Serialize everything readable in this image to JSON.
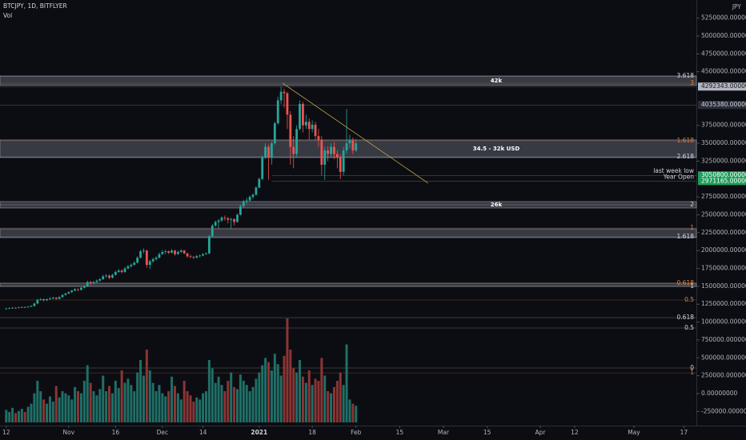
{
  "chart_data": {
    "type": "candlestick",
    "title": "BTCJPY, 1D, BITFLYER",
    "subtitle": "Vol",
    "y_axis_unit": "JPY",
    "up_color": "#26a69a",
    "down_color": "#ef5350",
    "volume_up_color": "#1f6f67",
    "volume_down_color": "#8c3434",
    "xlim": [
      -2,
      221
    ],
    "xticks": [
      {
        "value": 0,
        "label": "12"
      },
      {
        "value": 20,
        "label": "Nov"
      },
      {
        "value": 35,
        "label": "16"
      },
      {
        "value": 50,
        "label": "Dec"
      },
      {
        "value": 63,
        "label": "14"
      },
      {
        "value": 81,
        "label": "2021"
      },
      {
        "value": 98,
        "label": "18"
      },
      {
        "value": 112,
        "label": "Feb"
      },
      {
        "value": 126,
        "label": "15"
      },
      {
        "value": 140,
        "label": "Mar"
      },
      {
        "value": 154,
        "label": "15"
      },
      {
        "value": 171,
        "label": "Apr"
      },
      {
        "value": 182,
        "label": "12"
      },
      {
        "value": 201,
        "label": "May"
      },
      {
        "value": 217,
        "label": "17"
      }
    ],
    "ylim": [
      -425000,
      5503000
    ],
    "yticks": [
      {
        "value": 5250000,
        "label": "5250000.00000000"
      },
      {
        "value": 5000000,
        "label": "5000000.00000000"
      },
      {
        "value": 4750000,
        "label": "4750000.00000000"
      },
      {
        "value": 4500000,
        "label": "4500000.00000000"
      },
      {
        "value": 3750000,
        "label": "3750000.00000000"
      },
      {
        "value": 3500000,
        "label": "3500000.00000000"
      },
      {
        "value": 3250000,
        "label": "3250000.00000000"
      },
      {
        "value": 2750000,
        "label": "2750000.00000000"
      },
      {
        "value": 2500000,
        "label": "2500000.00000000"
      },
      {
        "value": 2250000,
        "label": "2250000.00000000"
      },
      {
        "value": 2000000,
        "label": "2000000.00000000"
      },
      {
        "value": 1750000,
        "label": "1750000.00000000"
      },
      {
        "value": 1500000,
        "label": "1500000.00000000"
      },
      {
        "value": 1250000,
        "label": "1250000.00000000"
      },
      {
        "value": 1000000,
        "label": "1000000.00000000"
      },
      {
        "value": 750000,
        "label": "750000.00000000"
      },
      {
        "value": 500000,
        "label": "500000.00000000"
      },
      {
        "value": 250000,
        "label": "250000.00000000"
      },
      {
        "value": 0,
        "label": "0.00000000"
      },
      {
        "value": -250000,
        "label": "-250000.00000000"
      }
    ],
    "ohlc": [
      [
        1185000,
        1200000,
        1175000,
        1190000
      ],
      [
        1190000,
        1205000,
        1182000,
        1195000
      ],
      [
        1195000,
        1210000,
        1188000,
        1200000
      ],
      [
        1200000,
        1208000,
        1188000,
        1198000
      ],
      [
        1198000,
        1215000,
        1192000,
        1205000
      ],
      [
        1205000,
        1220000,
        1198000,
        1210000
      ],
      [
        1210000,
        1218000,
        1198000,
        1208000
      ],
      [
        1208000,
        1225000,
        1200000,
        1215000
      ],
      [
        1215000,
        1235000,
        1208000,
        1225000
      ],
      [
        1225000,
        1270000,
        1218000,
        1260000
      ],
      [
        1260000,
        1325000,
        1250000,
        1310000
      ],
      [
        1310000,
        1335000,
        1300000,
        1320000
      ],
      [
        1320000,
        1330000,
        1290000,
        1305000
      ],
      [
        1305000,
        1330000,
        1295000,
        1320000
      ],
      [
        1320000,
        1345000,
        1310000,
        1330000
      ],
      [
        1330000,
        1355000,
        1320000,
        1340000
      ],
      [
        1340000,
        1350000,
        1310000,
        1325000
      ],
      [
        1325000,
        1360000,
        1315000,
        1350000
      ],
      [
        1350000,
        1390000,
        1340000,
        1380000
      ],
      [
        1380000,
        1410000,
        1370000,
        1400000
      ],
      [
        1400000,
        1430000,
        1390000,
        1420000
      ],
      [
        1420000,
        1450000,
        1405000,
        1440000
      ],
      [
        1440000,
        1475000,
        1430000,
        1460000
      ],
      [
        1460000,
        1470000,
        1430000,
        1450000
      ],
      [
        1450000,
        1490000,
        1440000,
        1480000
      ],
      [
        1480000,
        1515000,
        1470000,
        1500000
      ],
      [
        1500000,
        1580000,
        1490000,
        1560000
      ],
      [
        1560000,
        1575000,
        1520000,
        1540000
      ],
      [
        1540000,
        1575000,
        1530000,
        1560000
      ],
      [
        1560000,
        1595000,
        1545000,
        1580000
      ],
      [
        1580000,
        1615000,
        1565000,
        1600000
      ],
      [
        1600000,
        1660000,
        1590000,
        1640000
      ],
      [
        1640000,
        1670000,
        1620000,
        1650000
      ],
      [
        1650000,
        1665000,
        1600000,
        1620000
      ],
      [
        1620000,
        1675000,
        1610000,
        1660000
      ],
      [
        1660000,
        1720000,
        1650000,
        1700000
      ],
      [
        1700000,
        1740000,
        1690000,
        1720000
      ],
      [
        1720000,
        1735000,
        1680000,
        1700000
      ],
      [
        1700000,
        1770000,
        1690000,
        1750000
      ],
      [
        1750000,
        1800000,
        1740000,
        1780000
      ],
      [
        1780000,
        1820000,
        1760000,
        1800000
      ],
      [
        1800000,
        1850000,
        1790000,
        1830000
      ],
      [
        1830000,
        1920000,
        1820000,
        1900000
      ],
      [
        1900000,
        2010000,
        1890000,
        1990000
      ],
      [
        1990000,
        2030000,
        1960000,
        2000000
      ],
      [
        2000000,
        2010000,
        1760000,
        1800000
      ],
      [
        1800000,
        1870000,
        1740000,
        1850000
      ],
      [
        1850000,
        1900000,
        1830000,
        1880000
      ],
      [
        1880000,
        1920000,
        1860000,
        1900000
      ],
      [
        1900000,
        1970000,
        1890000,
        1950000
      ],
      [
        1950000,
        2010000,
        1940000,
        1980000
      ],
      [
        1980000,
        2010000,
        1950000,
        1990000
      ],
      [
        1990000,
        2000000,
        1950000,
        1970000
      ],
      [
        1970000,
        2020000,
        1960000,
        2000000
      ],
      [
        2000000,
        2010000,
        1930000,
        1950000
      ],
      [
        1950000,
        2000000,
        1940000,
        1980000
      ],
      [
        1980000,
        2020000,
        1970000,
        2000000
      ],
      [
        2000000,
        2010000,
        1950000,
        1960000
      ],
      [
        1960000,
        1970000,
        1900000,
        1920000
      ],
      [
        1920000,
        1940000,
        1895000,
        1910000
      ],
      [
        1910000,
        1925000,
        1880000,
        1900000
      ],
      [
        1900000,
        1940000,
        1890000,
        1920000
      ],
      [
        1920000,
        1945000,
        1905000,
        1930000
      ],
      [
        1930000,
        1965000,
        1920000,
        1950000
      ],
      [
        1950000,
        1975000,
        1940000,
        1960000
      ],
      [
        1960000,
        2220000,
        1950000,
        2200000
      ],
      [
        2200000,
        2370000,
        2190000,
        2350000
      ],
      [
        2350000,
        2420000,
        2330000,
        2400000
      ],
      [
        2400000,
        2440000,
        2310000,
        2420000
      ],
      [
        2420000,
        2480000,
        2400000,
        2460000
      ],
      [
        2460000,
        2490000,
        2420000,
        2450000
      ],
      [
        2450000,
        2470000,
        2380000,
        2430000
      ],
      [
        2430000,
        2460000,
        2300000,
        2440000
      ],
      [
        2440000,
        2450000,
        2350000,
        2400000
      ],
      [
        2400000,
        2520000,
        2390000,
        2500000
      ],
      [
        2500000,
        2640000,
        2490000,
        2620000
      ],
      [
        2620000,
        2710000,
        2600000,
        2690000
      ],
      [
        2690000,
        2740000,
        2650000,
        2700000
      ],
      [
        2700000,
        2770000,
        2680000,
        2750000
      ],
      [
        2750000,
        2800000,
        2720000,
        2780000
      ],
      [
        2780000,
        2900000,
        2770000,
        2880000
      ],
      [
        2880000,
        3020000,
        2870000,
        3000000
      ],
      [
        3000000,
        3330000,
        2990000,
        3300000
      ],
      [
        3300000,
        3500000,
        3280000,
        3450000
      ],
      [
        3450000,
        3480000,
        2990000,
        3300000
      ],
      [
        3300000,
        3520000,
        3200000,
        3500000
      ],
      [
        3500000,
        3800000,
        3480000,
        3780000
      ],
      [
        3780000,
        4150000,
        3760000,
        4100000
      ],
      [
        4100000,
        4290000,
        4050000,
        4220000
      ],
      [
        4220000,
        4260000,
        4000000,
        4200000
      ],
      [
        4200000,
        4220000,
        3700000,
        3900000
      ],
      [
        3900000,
        3950000,
        3200000,
        3450000
      ],
      [
        3450000,
        3600000,
        3150000,
        3350000
      ],
      [
        3350000,
        3750000,
        3300000,
        3700000
      ],
      [
        3700000,
        4100000,
        3680000,
        4050000
      ],
      [
        4050000,
        4080000,
        3650000,
        3750000
      ],
      [
        3750000,
        3900000,
        3700000,
        3800000
      ],
      [
        3800000,
        3850000,
        3550000,
        3700000
      ],
      [
        3700000,
        3820000,
        3650000,
        3760000
      ],
      [
        3760000,
        3800000,
        3550000,
        3600000
      ],
      [
        3600000,
        3700000,
        3450000,
        3550000
      ],
      [
        3550000,
        3600000,
        3050000,
        3200000
      ],
      [
        3200000,
        3450000,
        2990000,
        3400000
      ],
      [
        3400000,
        3460000,
        3250000,
        3350000
      ],
      [
        3350000,
        3500000,
        3300000,
        3450000
      ],
      [
        3450000,
        3520000,
        3280000,
        3350000
      ],
      [
        3350000,
        3400000,
        3150000,
        3300000
      ],
      [
        3300000,
        3350000,
        3000000,
        3100000
      ],
      [
        3100000,
        3450000,
        3050000,
        3400000
      ],
      [
        3400000,
        3980000,
        3350000,
        3500000
      ],
      [
        3500000,
        3620000,
        3430000,
        3550000
      ],
      [
        3550000,
        3580000,
        3350000,
        3400000
      ],
      [
        3400000,
        3560000,
        3380000,
        3500000
      ]
    ],
    "volume_ylim": [
      0,
      100
    ],
    "volume": [
      12,
      10,
      14,
      9,
      11,
      13,
      10,
      15,
      18,
      28,
      40,
      30,
      22,
      18,
      25,
      20,
      35,
      24,
      30,
      28,
      26,
      22,
      34,
      30,
      28,
      40,
      55,
      38,
      30,
      26,
      32,
      45,
      30,
      35,
      28,
      40,
      33,
      50,
      38,
      42,
      36,
      30,
      48,
      60,
      45,
      70,
      50,
      38,
      30,
      36,
      28,
      25,
      30,
      44,
      35,
      28,
      22,
      40,
      30,
      26,
      20,
      24,
      22,
      28,
      30,
      60,
      52,
      38,
      44,
      36,
      30,
      40,
      48,
      34,
      32,
      46,
      40,
      36,
      30,
      34,
      42,
      48,
      55,
      62,
      58,
      50,
      66,
      56,
      45,
      64,
      100,
      70,
      52,
      48,
      60,
      44,
      38,
      50,
      36,
      42,
      40,
      62,
      45,
      30,
      28,
      34,
      40,
      48,
      36,
      75,
      22,
      18,
      16
    ],
    "zones": [
      {
        "from": 4310000,
        "to": 4440000,
        "label": "42k"
      },
      {
        "from": 3300000,
        "to": 3546000,
        "label": "34.5 - 32k USD"
      },
      {
        "from": 2595000,
        "to": 2685000,
        "label": "26k"
      },
      {
        "from": 2181000,
        "to": 2304000
      },
      {
        "from": 1499000,
        "to": 1544000
      }
    ],
    "fib_levels": [
      {
        "label": "3.618",
        "value": 4440000,
        "color": "#d1d4dc"
      },
      {
        "label": "3",
        "value": 4340000,
        "color": "#e0803a"
      },
      {
        "label": "1.618",
        "value": 3535000,
        "color": "#e0803a"
      },
      {
        "label": "2.618",
        "value": 3310000,
        "color": "#d1d4dc"
      },
      {
        "label": "2",
        "value": 2640000,
        "color": "#d1d4dc"
      },
      {
        "label": "1",
        "value": 2315000,
        "color": "#e0803a"
      },
      {
        "label": "1.618",
        "value": 2192000,
        "color": "#d1d4dc"
      },
      {
        "label": "0.618",
        "value": 1544000,
        "color": "#e0803a"
      },
      {
        "label": "1",
        "value": 1499000,
        "color": "#d1d4dc"
      },
      {
        "label": "0.5",
        "value": 1309000,
        "color": "#e0803a"
      },
      {
        "label": "0.618",
        "value": 1062000,
        "color": "#d1d4dc"
      },
      {
        "label": "0.5",
        "value": 917000,
        "color": "#d1d4dc"
      },
      {
        "label": "0",
        "value": 358000,
        "color": "#d1d4dc"
      },
      {
        "label": "1",
        "value": 290000,
        "color": "#e0803a"
      }
    ],
    "price_labels": [
      {
        "value": 4292343,
        "label": "4292343.00000000",
        "color": "#b2b5be",
        "text_color": "#131722"
      },
      {
        "value": 4035380,
        "label": "4035380.00000000",
        "color": "#2a2e39",
        "text_color": "#d1d4dc"
      },
      {
        "value": 3050800,
        "label": "3050800.00000000",
        "color": "#1e9e5a",
        "text_color": "#ffffff",
        "note": "last week low"
      },
      {
        "value": 2971165,
        "label": "2971165.00000000",
        "color": "#1e9e5a",
        "text_color": "#ffffff",
        "note": "Year Open"
      }
    ],
    "trendline": {
      "x": [
        88.5,
        135.1
      ],
      "y": [
        4340000,
        2942000
      ],
      "color": "#c9a64a"
    }
  }
}
